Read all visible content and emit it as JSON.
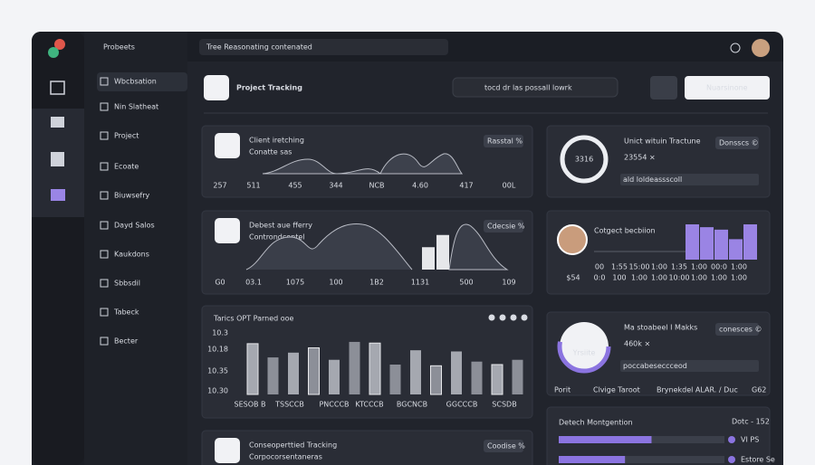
{
  "app": {
    "brand": "Probeets",
    "search": "Tree  Reasonating contenated"
  },
  "sidebar": [
    "Wbcbsation",
    "Nin Slatheat",
    "Project",
    "Ecoate",
    "Biuwsefry",
    "Dayd Salos",
    "Kaukdons",
    "Sbbsdil",
    "Tabeck",
    "Becter"
  ],
  "header": {
    "title": "Project Tracking",
    "search": "tocd dr las possall lowrk",
    "button": "Nuarsinone"
  },
  "cards": [
    {
      "title": "Client iretching",
      "subtitle": "Conatte sas",
      "badge": "Rasstal %",
      "axis": [
        "257",
        "511",
        "455",
        "344",
        "NCB",
        "4.60",
        "417",
        "00L"
      ]
    },
    {
      "title": "Debest aue fferry",
      "subtitle": "Controndcontel",
      "badge": "Cdecsie %",
      "axis": [
        "G0",
        "03.1",
        "1075",
        "100",
        "1B2",
        "1131",
        "500",
        "109"
      ],
      "bars": [
        55,
        85
      ]
    },
    {
      "title": "Tarics OPT Parned ooe",
      "yaxis": [
        "10.3",
        "10.18",
        "10.35",
        "10.30"
      ],
      "axis": [
        "SESOB B",
        "TSSCCB",
        "PNCCCB",
        "KTCCCB",
        "BGCNCB",
        "GGCCCB",
        "SCSDB"
      ],
      "bars": [
        85,
        62,
        70,
        78,
        58,
        88,
        86,
        50,
        74,
        48,
        72,
        55,
        50,
        58
      ]
    },
    {
      "title": "Conseoperttied Tracking",
      "subtitle": "Corpocorsentaneras",
      "badge": "Coodise %"
    }
  ],
  "right": [
    {
      "ring": "3316",
      "title": "Unict wituin Tractune",
      "value": "23554 ×",
      "badge": "Donsscs ©",
      "input": "ald  loldeassscoll"
    },
    {
      "title": "Cotgect becbiion",
      "bars": [
        100,
        92,
        85,
        58,
        100
      ],
      "axis1": [
        "00",
        "1:55",
        "15:00",
        "1:00",
        "1:35",
        "1:00",
        "00:0",
        "1:00"
      ],
      "axis2": [
        "0:0",
        "100",
        "1:00",
        "1:00",
        "10:00",
        "1:00",
        "1:00",
        "1:00"
      ],
      "side": "$54"
    },
    {
      "ring": "Yrsiite",
      "title": "Ma stoabeel I Makks",
      "value": "460k ×",
      "badge": "conesces ©",
      "input": "poccabeseccceod",
      "foot": [
        "Porit",
        "Clvige Taroot",
        "Brynekdel ALAR. / Duc",
        "G62"
      ]
    },
    {
      "title": "Detech Montgention",
      "badge": "Dotc - 152",
      "rows": [
        {
          "label": "VI PS",
          "value": 56
        },
        {
          "label": "Estore Se",
          "value": 40
        }
      ]
    }
  ]
}
